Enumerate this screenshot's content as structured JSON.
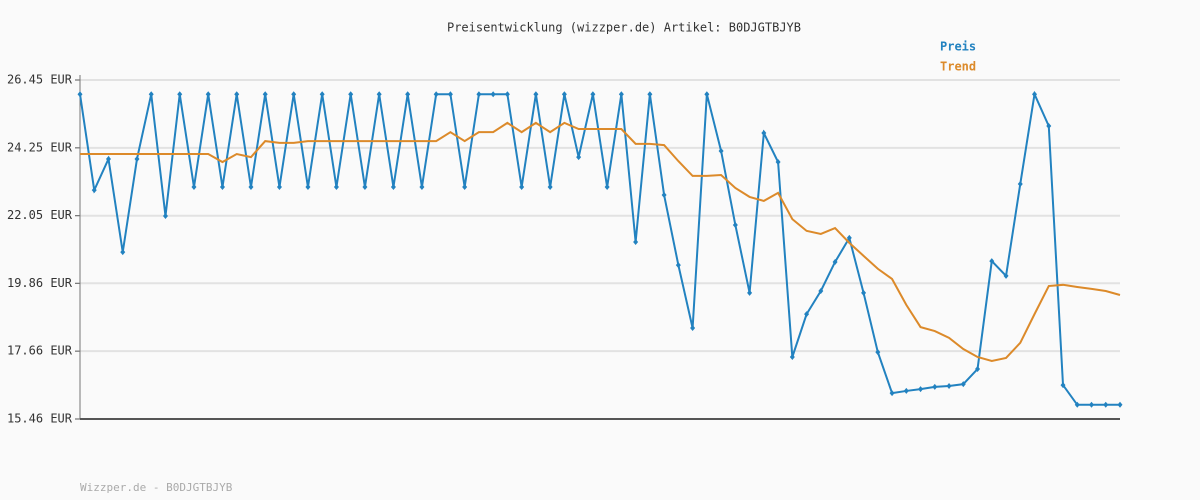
{
  "chart_data": {
    "type": "line",
    "title": "Preisentwicklung (wizzper.de) Artikel: B0DJGTBJYB",
    "footer": "Wizzper.de - B0DJGTBJYB",
    "ylim": [
      15.46,
      26.45
    ],
    "yticks": [
      {
        "value": 15.46,
        "label": "15.46 EUR"
      },
      {
        "value": 17.66,
        "label": "17.66 EUR"
      },
      {
        "value": 19.86,
        "label": "19.86 EUR"
      },
      {
        "value": 22.05,
        "label": "22.05 EUR"
      },
      {
        "value": 24.25,
        "label": "24.25 EUR"
      },
      {
        "value": 26.45,
        "label": "26.45 EUR"
      }
    ],
    "grid": true,
    "legend": "top-right",
    "series": [
      {
        "name": "Preis",
        "color": "#2282c0",
        "markers": true,
        "values": [
          25.99,
          22.88,
          23.89,
          20.87,
          23.89,
          25.99,
          22.04,
          25.99,
          22.98,
          25.99,
          22.98,
          25.99,
          22.98,
          25.99,
          22.98,
          25.99,
          22.98,
          25.99,
          22.98,
          25.99,
          22.98,
          25.99,
          22.98,
          25.99,
          22.98,
          25.99,
          25.99,
          22.98,
          25.99,
          25.99,
          25.99,
          22.98,
          25.99,
          22.98,
          25.99,
          23.95,
          25.99,
          22.98,
          25.99,
          21.2,
          25.99,
          22.72,
          20.45,
          18.41,
          25.99,
          24.15,
          21.75,
          19.55,
          24.73,
          23.79,
          17.47,
          18.86,
          19.61,
          20.55,
          21.33,
          19.55,
          17.63,
          16.3,
          16.37,
          16.43,
          16.5,
          16.53,
          16.59,
          17.08,
          20.58,
          20.1,
          23.08,
          25.99,
          24.96,
          16.56,
          15.92,
          15.92,
          15.92,
          15.92
        ]
      },
      {
        "name": "Trend",
        "color": "#dc8a2a",
        "markers": false,
        "values": [
          24.05,
          24.05,
          24.05,
          24.05,
          24.05,
          24.05,
          24.05,
          24.05,
          24.05,
          24.05,
          23.79,
          24.05,
          23.95,
          24.47,
          24.41,
          24.41,
          24.47,
          24.47,
          24.47,
          24.47,
          24.47,
          24.47,
          24.47,
          24.47,
          24.47,
          24.47,
          24.76,
          24.47,
          24.76,
          24.76,
          25.06,
          24.76,
          25.06,
          24.76,
          25.06,
          24.86,
          24.86,
          24.86,
          24.86,
          24.38,
          24.38,
          24.34,
          23.82,
          23.34,
          23.34,
          23.37,
          22.95,
          22.66,
          22.53,
          22.79,
          21.94,
          21.56,
          21.46,
          21.65,
          21.17,
          20.75,
          20.33,
          20.0,
          19.16,
          18.44,
          18.31,
          18.09,
          17.73,
          17.47,
          17.34,
          17.44,
          17.93,
          18.86,
          19.77,
          19.81,
          19.74,
          19.68,
          19.61,
          19.48
        ]
      }
    ]
  }
}
